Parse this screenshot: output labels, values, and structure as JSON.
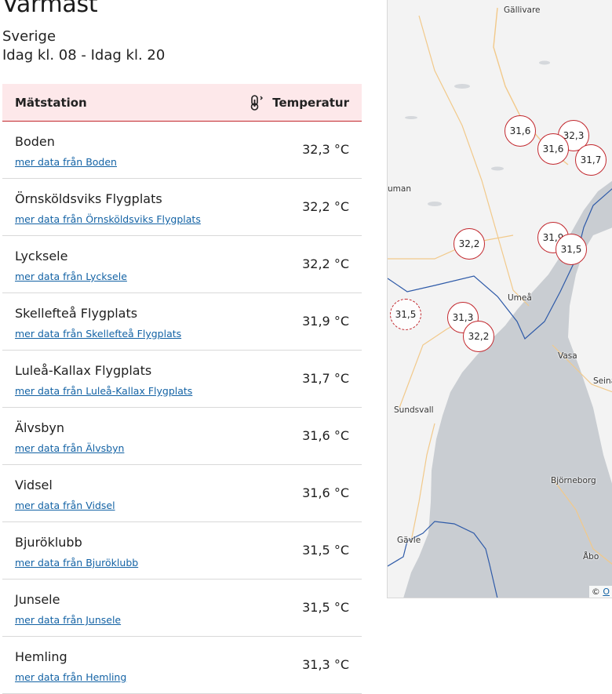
{
  "page": {
    "title": "Varmast",
    "region": "Sverige",
    "period": "Idag kl. 08 - Idag kl. 20"
  },
  "table": {
    "col_station": "Mätstation",
    "col_temperature": "Temperatur",
    "rows": [
      {
        "name": "Boden",
        "link": "mer data från Boden",
        "temp": "32,3 °C"
      },
      {
        "name": "Örnsköldsviks Flygplats",
        "link": "mer data från Örnsköldsviks Flygplats",
        "temp": "32,2 °C"
      },
      {
        "name": "Lycksele",
        "link": "mer data från Lycksele",
        "temp": "32,2 °C"
      },
      {
        "name": "Skellefteå Flygplats",
        "link": "mer data från Skellefteå Flygplats",
        "temp": "31,9 °C"
      },
      {
        "name": "Luleå-Kallax Flygplats",
        "link": "mer data från Luleå-Kallax Flygplats",
        "temp": "31,7 °C"
      },
      {
        "name": "Älvsbyn",
        "link": "mer data från Älvsbyn",
        "temp": "31,6 °C"
      },
      {
        "name": "Vidsel",
        "link": "mer data från Vidsel",
        "temp": "31,6 °C"
      },
      {
        "name": "Bjuröklubb",
        "link": "mer data från Bjuröklubb",
        "temp": "31,5 °C"
      },
      {
        "name": "Junsele",
        "link": "mer data från Junsele",
        "temp": "31,5 °C"
      },
      {
        "name": "Hemling",
        "link": "mer data från Hemling",
        "temp": "31,3 °C"
      }
    ]
  },
  "map": {
    "cities": [
      "Gällivare",
      "Umeå",
      "Vasa",
      "Seinä",
      "Sundsvall",
      "Björneborg",
      "Gävle",
      "Åbo",
      "uman"
    ],
    "markers": [
      "31,6",
      "32,3",
      "31,6",
      "31,7",
      "32,2",
      "31,9",
      "31,5",
      "31,5",
      "31,3",
      "32,2"
    ],
    "attribution_symbol": "©",
    "attribution_link": "O"
  },
  "colors": {
    "accent_red": "#c2272d",
    "header_bg": "#fde8ea",
    "link_blue": "#1463a5",
    "water": "#c9cdd2",
    "land": "#f3f3f3"
  }
}
